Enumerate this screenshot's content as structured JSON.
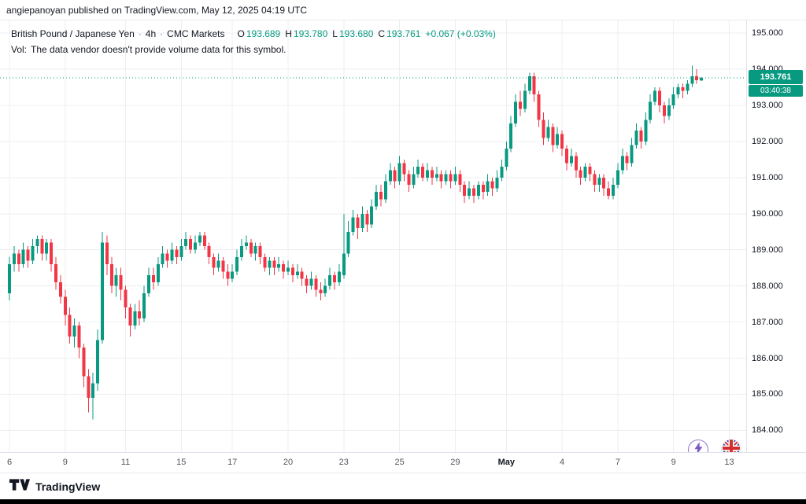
{
  "attribution": "angiepanoyan published on TradingView.com, May 12, 2025 04:19 UTC",
  "header": {
    "symbol": "British Pound / Japanese Yen",
    "sep": "·",
    "interval": "4h",
    "exchange": "CMC Markets",
    "ohlc": {
      "o_label": "O",
      "o": "193.689",
      "h_label": "H",
      "h": "193.780",
      "l_label": "L",
      "l": "193.680",
      "c_label": "C",
      "c": "193.761",
      "change": "+0.067 (+0.03%)"
    },
    "vol_label": "Vol:",
    "vol_message": "The data vendor doesn't provide volume data for this symbol."
  },
  "price_scale": {
    "labels": [
      "195.000",
      "194.000",
      "193.000",
      "192.000",
      "191.000",
      "190.000",
      "189.000",
      "188.000",
      "187.000",
      "186.000",
      "185.000",
      "184.000"
    ],
    "last_price_label": "193.761",
    "countdown": "03:40:38"
  },
  "footer": {
    "brand": "TradingView"
  },
  "colors": {
    "up": "#089981",
    "down": "#F23645",
    "grid": "#eceff2",
    "text": "#131722",
    "axis_border": "#e0e3eb",
    "badge": "#089981"
  },
  "chart_data": {
    "type": "candlestick",
    "title": "British Pound / Japanese Yen, 4h, CMC Markets",
    "ohlc_current": {
      "open": 193.689,
      "high": 193.78,
      "low": 193.68,
      "close": 193.761,
      "change": 0.067,
      "change_pct": 0.03
    },
    "ylim": [
      183.4,
      195.35
    ],
    "y_gridlines": [
      184,
      185,
      186,
      187,
      188,
      189,
      190,
      191,
      192,
      193,
      194,
      195
    ],
    "last_price": 193.761,
    "x_ticks": [
      {
        "label": "6",
        "i": 0
      },
      {
        "label": "9",
        "i": 12
      },
      {
        "label": "11",
        "i": 25
      },
      {
        "label": "15",
        "i": 37
      },
      {
        "label": "17",
        "i": 48
      },
      {
        "label": "20",
        "i": 60
      },
      {
        "label": "23",
        "i": 72
      },
      {
        "label": "25",
        "i": 84
      },
      {
        "label": "29",
        "i": 96
      },
      {
        "label": "May",
        "i": 107
      },
      {
        "label": "4",
        "i": 119
      },
      {
        "label": "7",
        "i": 131
      },
      {
        "label": "9",
        "i": 143
      },
      {
        "label": "13",
        "i": 155
      }
    ],
    "candles": [
      [
        187.8,
        188.8,
        187.6,
        188.6
      ],
      [
        188.6,
        189.1,
        188.4,
        188.9
      ],
      [
        188.9,
        189.0,
        188.4,
        188.6
      ],
      [
        188.6,
        189.2,
        188.5,
        189.0
      ],
      [
        189.0,
        189.1,
        188.5,
        188.7
      ],
      [
        188.7,
        189.3,
        188.6,
        189.1
      ],
      [
        189.1,
        189.4,
        188.9,
        189.3
      ],
      [
        189.3,
        189.4,
        188.7,
        188.9
      ],
      [
        188.9,
        189.3,
        188.7,
        189.2
      ],
      [
        189.2,
        189.3,
        188.4,
        188.6
      ],
      [
        188.6,
        188.8,
        187.9,
        188.1
      ],
      [
        188.1,
        188.3,
        187.5,
        187.7
      ],
      [
        187.7,
        187.9,
        186.9,
        187.2
      ],
      [
        187.2,
        187.4,
        186.4,
        186.6
      ],
      [
        186.6,
        187.1,
        186.3,
        186.9
      ],
      [
        186.9,
        187.0,
        186.0,
        186.3
      ],
      [
        186.3,
        186.4,
        185.2,
        185.5
      ],
      [
        185.5,
        185.7,
        184.5,
        184.9
      ],
      [
        184.9,
        185.6,
        184.3,
        185.3
      ],
      [
        185.3,
        186.8,
        185.1,
        186.5
      ],
      [
        186.5,
        189.5,
        186.4,
        189.2
      ],
      [
        189.2,
        189.4,
        188.3,
        188.6
      ],
      [
        188.6,
        188.8,
        187.8,
        188.0
      ],
      [
        188.0,
        188.5,
        187.7,
        188.3
      ],
      [
        188.3,
        188.5,
        187.6,
        187.9
      ],
      [
        187.9,
        188.0,
        187.1,
        187.4
      ],
      [
        187.4,
        187.5,
        186.6,
        186.9
      ],
      [
        186.9,
        187.5,
        186.8,
        187.3
      ],
      [
        187.3,
        187.6,
        186.9,
        187.1
      ],
      [
        187.1,
        188.0,
        187.0,
        187.8
      ],
      [
        187.8,
        188.5,
        187.7,
        188.3
      ],
      [
        188.3,
        188.5,
        187.9,
        188.1
      ],
      [
        188.1,
        188.8,
        188.0,
        188.6
      ],
      [
        188.6,
        189.1,
        188.5,
        188.9
      ],
      [
        188.9,
        189.0,
        188.5,
        188.7
      ],
      [
        188.7,
        189.2,
        188.6,
        189.0
      ],
      [
        189.0,
        189.1,
        188.6,
        188.8
      ],
      [
        188.8,
        189.3,
        188.7,
        189.1
      ],
      [
        189.1,
        189.5,
        189.0,
        189.3
      ],
      [
        189.3,
        189.4,
        188.9,
        189.0
      ],
      [
        189.0,
        189.4,
        188.9,
        189.2
      ],
      [
        189.2,
        189.5,
        189.1,
        189.4
      ],
      [
        189.4,
        189.5,
        189.0,
        189.1
      ],
      [
        189.1,
        189.2,
        188.6,
        188.8
      ],
      [
        188.8,
        188.9,
        188.3,
        188.5
      ],
      [
        188.5,
        188.9,
        188.4,
        188.7
      ],
      [
        188.7,
        188.8,
        188.2,
        188.4
      ],
      [
        188.4,
        188.6,
        188.0,
        188.2
      ],
      [
        188.2,
        188.6,
        188.1,
        188.4
      ],
      [
        188.4,
        189.0,
        188.3,
        188.8
      ],
      [
        188.8,
        189.3,
        188.7,
        189.1
      ],
      [
        189.1,
        189.4,
        189.0,
        189.2
      ],
      [
        189.2,
        189.3,
        188.8,
        188.9
      ],
      [
        188.9,
        189.2,
        188.7,
        189.1
      ],
      [
        189.1,
        189.2,
        188.6,
        188.8
      ],
      [
        188.8,
        188.9,
        188.4,
        188.5
      ],
      [
        188.5,
        188.8,
        188.3,
        188.7
      ],
      [
        188.7,
        188.8,
        188.3,
        188.5
      ],
      [
        188.5,
        188.8,
        188.4,
        188.6
      ],
      [
        188.6,
        188.7,
        188.2,
        188.4
      ],
      [
        188.4,
        188.7,
        188.3,
        188.5
      ],
      [
        188.5,
        188.6,
        188.1,
        188.3
      ],
      [
        188.3,
        188.6,
        188.2,
        188.4
      ],
      [
        188.4,
        188.5,
        188.0,
        188.2
      ],
      [
        188.2,
        188.3,
        187.8,
        188.0
      ],
      [
        188.0,
        188.4,
        187.9,
        188.2
      ],
      [
        188.2,
        188.3,
        187.7,
        187.9
      ],
      [
        187.9,
        188.1,
        187.6,
        187.8
      ],
      [
        187.8,
        188.2,
        187.7,
        188.0
      ],
      [
        188.0,
        188.5,
        187.9,
        188.3
      ],
      [
        188.3,
        188.4,
        187.9,
        188.1
      ],
      [
        188.1,
        188.6,
        188.0,
        188.4
      ],
      [
        188.3,
        190.0,
        188.2,
        188.9
      ],
      [
        188.9,
        189.8,
        188.8,
        189.5
      ],
      [
        189.5,
        190.1,
        189.4,
        189.9
      ],
      [
        189.9,
        190.0,
        189.3,
        189.6
      ],
      [
        189.6,
        190.2,
        189.5,
        190.0
      ],
      [
        190.0,
        190.1,
        189.5,
        189.7
      ],
      [
        189.7,
        190.4,
        189.6,
        190.2
      ],
      [
        190.2,
        190.8,
        190.1,
        190.6
      ],
      [
        190.6,
        190.8,
        190.2,
        190.4
      ],
      [
        190.4,
        191.1,
        190.3,
        190.9
      ],
      [
        190.9,
        191.4,
        190.8,
        191.2
      ],
      [
        191.2,
        191.3,
        190.7,
        190.9
      ],
      [
        190.9,
        191.6,
        190.8,
        191.4
      ],
      [
        191.4,
        191.5,
        190.9,
        191.1
      ],
      [
        191.1,
        191.2,
        190.6,
        190.8
      ],
      [
        190.8,
        191.3,
        190.7,
        191.1
      ],
      [
        191.1,
        191.5,
        191.0,
        191.3
      ],
      [
        191.3,
        191.4,
        190.9,
        191.0
      ],
      [
        191.0,
        191.4,
        190.9,
        191.2
      ],
      [
        191.2,
        191.3,
        190.8,
        191.0
      ],
      [
        191.0,
        191.3,
        190.9,
        191.1
      ],
      [
        191.1,
        191.2,
        190.7,
        190.9
      ],
      [
        190.9,
        191.2,
        190.8,
        191.1
      ],
      [
        191.1,
        191.2,
        190.7,
        190.9
      ],
      [
        190.9,
        191.3,
        190.8,
        191.1
      ],
      [
        191.1,
        191.2,
        190.6,
        190.8
      ],
      [
        190.8,
        190.9,
        190.3,
        190.5
      ],
      [
        190.5,
        190.9,
        190.4,
        190.7
      ],
      [
        190.7,
        190.8,
        190.3,
        190.5
      ],
      [
        190.5,
        190.9,
        190.4,
        190.8
      ],
      [
        190.8,
        190.9,
        190.4,
        190.6
      ],
      [
        190.6,
        191.1,
        190.5,
        190.9
      ],
      [
        190.9,
        191.0,
        190.5,
        190.7
      ],
      [
        190.7,
        191.2,
        190.6,
        191.0
      ],
      [
        191.0,
        191.5,
        190.9,
        191.3
      ],
      [
        191.3,
        192.0,
        191.2,
        191.8
      ],
      [
        191.8,
        192.7,
        191.7,
        192.5
      ],
      [
        192.5,
        193.3,
        192.4,
        193.1
      ],
      [
        193.1,
        193.4,
        192.7,
        192.9
      ],
      [
        192.9,
        193.6,
        192.8,
        193.4
      ],
      [
        193.4,
        193.9,
        193.3,
        193.8
      ],
      [
        193.8,
        193.9,
        193.1,
        193.3
      ],
      [
        193.3,
        193.4,
        192.4,
        192.6
      ],
      [
        192.6,
        192.8,
        191.9,
        192.1
      ],
      [
        192.1,
        192.6,
        192.0,
        192.4
      ],
      [
        192.4,
        192.5,
        191.7,
        191.9
      ],
      [
        191.9,
        192.4,
        191.8,
        192.2
      ],
      [
        192.2,
        192.3,
        191.6,
        191.8
      ],
      [
        191.8,
        191.9,
        191.2,
        191.4
      ],
      [
        191.4,
        191.8,
        191.3,
        191.6
      ],
      [
        191.6,
        191.7,
        191.0,
        191.2
      ],
      [
        191.2,
        191.3,
        190.8,
        191.0
      ],
      [
        191.0,
        191.4,
        190.9,
        191.3
      ],
      [
        191.3,
        191.4,
        190.9,
        191.1
      ],
      [
        191.1,
        191.2,
        190.6,
        190.8
      ],
      [
        190.8,
        191.1,
        190.6,
        191.0
      ],
      [
        191.0,
        191.1,
        190.5,
        190.7
      ],
      [
        190.7,
        190.9,
        190.4,
        190.5
      ],
      [
        190.5,
        191.0,
        190.4,
        190.8
      ],
      [
        190.8,
        191.4,
        190.7,
        191.2
      ],
      [
        191.2,
        191.8,
        191.1,
        191.6
      ],
      [
        191.6,
        191.7,
        191.2,
        191.4
      ],
      [
        191.4,
        192.1,
        191.3,
        191.9
      ],
      [
        191.9,
        192.5,
        191.8,
        192.3
      ],
      [
        192.3,
        192.4,
        191.8,
        192.0
      ],
      [
        192.0,
        192.8,
        191.9,
        192.6
      ],
      [
        192.6,
        193.3,
        192.5,
        193.1
      ],
      [
        193.1,
        193.5,
        193.0,
        193.4
      ],
      [
        193.4,
        193.5,
        192.8,
        193.0
      ],
      [
        193.0,
        193.1,
        192.5,
        192.7
      ],
      [
        192.7,
        193.2,
        192.6,
        193.0
      ],
      [
        193.0,
        193.5,
        192.9,
        193.3
      ],
      [
        193.3,
        193.6,
        193.2,
        193.5
      ],
      [
        193.5,
        193.6,
        193.2,
        193.4
      ],
      [
        193.4,
        193.7,
        193.3,
        193.6
      ],
      [
        193.6,
        194.1,
        193.5,
        193.8
      ],
      [
        193.8,
        194.0,
        193.6,
        193.7
      ],
      [
        193.689,
        193.78,
        193.68,
        193.761
      ]
    ]
  }
}
